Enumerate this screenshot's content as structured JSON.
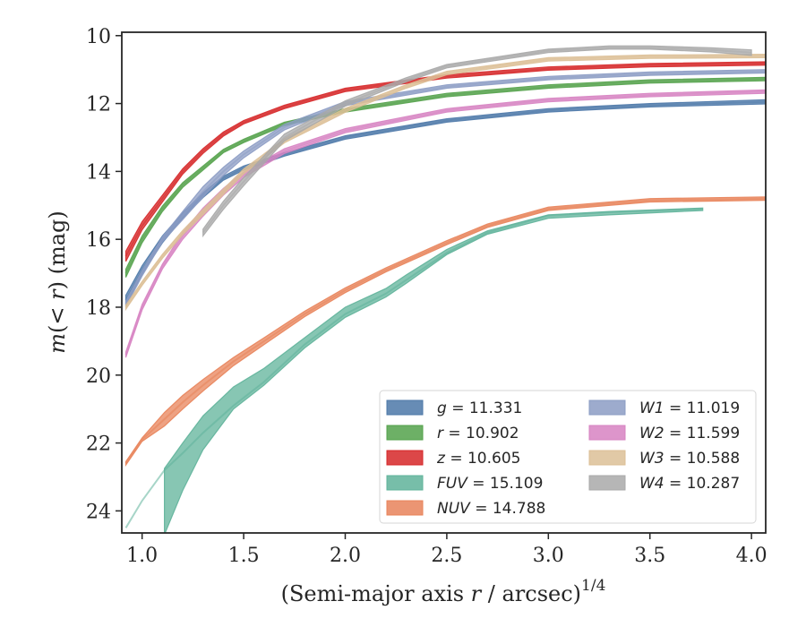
{
  "chart_data": {
    "type": "line",
    "xlabel": "(Semi-major axis r / arcsec)",
    "xlabel_parts": {
      "prefix": "(Semi-major axis ",
      "var": "r",
      "suffix": " / arcsec)",
      "sup": "1/4"
    },
    "ylabel": "m(< r) (mag)",
    "ylabel_parts": {
      "m": "m",
      "open": "(",
      "lt": "< ",
      "r": "r",
      "close": ") (mag)"
    },
    "xlim": [
      0.9,
      4.07
    ],
    "ylim": [
      24.65,
      9.9
    ],
    "y_inverted": true,
    "x_ticks": [
      "1.0",
      "1.5",
      "2.0",
      "2.5",
      "3.0",
      "3.5",
      "4.0"
    ],
    "y_ticks": [
      "10",
      "12",
      "14",
      "16",
      "18",
      "20",
      "22",
      "24"
    ],
    "x_tick_values": [
      1.0,
      1.5,
      2.0,
      2.5,
      3.0,
      3.5,
      4.0
    ],
    "y_tick_values": [
      10,
      12,
      14,
      16,
      18,
      20,
      22,
      24
    ],
    "grid": false,
    "legend_placement": "lower-right",
    "series": [
      {
        "label": "g",
        "value": "11.331",
        "color": "#4c78a8",
        "x": [
          0.92,
          1.0,
          1.1,
          1.2,
          1.3,
          1.4,
          1.5,
          1.7,
          2.0,
          2.5,
          3.0,
          3.5,
          4.07
        ],
        "y": [
          17.8,
          16.9,
          16.0,
          15.3,
          14.7,
          14.2,
          13.9,
          13.5,
          13.0,
          12.5,
          12.2,
          12.05,
          11.95
        ],
        "band": [
          0.15,
          0.12,
          0.1,
          0.08,
          0.07,
          0.06,
          0.06,
          0.05,
          0.05,
          0.05,
          0.05,
          0.05,
          0.06
        ]
      },
      {
        "label": "r",
        "value": "10.902",
        "color": "#54a24b",
        "x": [
          0.92,
          1.0,
          1.1,
          1.2,
          1.3,
          1.4,
          1.5,
          1.7,
          2.0,
          2.5,
          3.0,
          3.5,
          4.07
        ],
        "y": [
          17.0,
          16.0,
          15.1,
          14.4,
          13.9,
          13.4,
          13.1,
          12.6,
          12.2,
          11.75,
          11.5,
          11.35,
          11.28
        ],
        "band": [
          0.12,
          0.1,
          0.08,
          0.07,
          0.06,
          0.05,
          0.05,
          0.05,
          0.05,
          0.05,
          0.05,
          0.05,
          0.05
        ]
      },
      {
        "label": "z",
        "value": "10.605",
        "color": "#d62728",
        "x": [
          0.92,
          1.0,
          1.1,
          1.2,
          1.3,
          1.4,
          1.5,
          1.7,
          2.0,
          2.5,
          3.0,
          3.5,
          4.07
        ],
        "y": [
          16.5,
          15.6,
          14.8,
          14.0,
          13.4,
          12.9,
          12.55,
          12.1,
          11.6,
          11.2,
          10.97,
          10.87,
          10.82
        ],
        "band": [
          0.15,
          0.12,
          0.1,
          0.08,
          0.07,
          0.06,
          0.05,
          0.05,
          0.05,
          0.05,
          0.05,
          0.05,
          0.05
        ]
      },
      {
        "label": "FUV",
        "value": "15.109",
        "color": "#5fb39a",
        "x": [
          0.92,
          1.0,
          1.11,
          1.2,
          1.3,
          1.45,
          1.6,
          1.8,
          2.0,
          2.2,
          2.3,
          2.5,
          2.7,
          3.0,
          3.3,
          3.76
        ],
        "y": [
          24.5,
          23.7,
          22.8,
          22.3,
          21.7,
          20.9,
          20.2,
          19.1,
          18.2,
          17.6,
          17.2,
          16.4,
          15.8,
          15.3,
          15.2,
          15.1
        ],
        "band": [
          0.05,
          0.05,
          0.0,
          0.0,
          0.0,
          0.0,
          0.0,
          0.0,
          0.0,
          0.0,
          0.0,
          0.0,
          0.0,
          0.0,
          0.0,
          0.0
        ],
        "band_lo": [
          null,
          null,
          24.7,
          23.4,
          22.2,
          21.0,
          20.3,
          19.2,
          18.3,
          17.7,
          17.3,
          16.45,
          15.85,
          15.38,
          15.28,
          15.15
        ],
        "band_hi": [
          null,
          null,
          22.75,
          22.0,
          21.2,
          20.35,
          19.8,
          18.9,
          18.0,
          17.45,
          17.05,
          16.3,
          15.75,
          15.28,
          15.18,
          15.08
        ]
      },
      {
        "label": "NUV",
        "value": "14.788",
        "color": "#e8835a",
        "x": [
          0.92,
          1.0,
          1.11,
          1.2,
          1.3,
          1.45,
          1.6,
          1.8,
          2.0,
          2.2,
          2.5,
          2.7,
          3.0,
          3.5,
          4.07
        ],
        "y": [
          22.6,
          21.9,
          21.3,
          20.8,
          20.3,
          19.6,
          19.0,
          18.2,
          17.5,
          16.9,
          16.1,
          15.6,
          15.1,
          14.85,
          14.8
        ],
        "band": [
          0.05,
          0.05,
          0.2,
          0.2,
          0.17,
          0.12,
          0.1,
          0.08,
          0.07,
          0.06,
          0.06,
          0.05,
          0.05,
          0.05,
          0.05
        ]
      },
      {
        "label": "W1",
        "value": "11.019",
        "color": "#8c9cc4",
        "x": [
          0.92,
          1.0,
          1.1,
          1.2,
          1.3,
          1.4,
          1.5,
          1.7,
          2.0,
          2.5,
          3.0,
          3.5,
          4.07
        ],
        "y": [
          17.9,
          17.0,
          16.0,
          15.3,
          14.6,
          14.0,
          13.5,
          12.7,
          12.0,
          11.5,
          11.25,
          11.12,
          11.05
        ],
        "band": [
          0.08,
          0.08,
          0.07,
          0.12,
          0.15,
          0.12,
          0.1,
          0.08,
          0.06,
          0.05,
          0.05,
          0.05,
          0.05
        ]
      },
      {
        "label": "W2",
        "value": "11.599",
        "color": "#d783c2",
        "x": [
          0.92,
          1.0,
          1.1,
          1.2,
          1.3,
          1.4,
          1.5,
          1.7,
          2.0,
          2.5,
          3.0,
          3.5,
          4.07
        ],
        "y": [
          19.4,
          18.0,
          16.8,
          15.9,
          15.2,
          14.6,
          14.1,
          13.4,
          12.8,
          12.2,
          11.9,
          11.75,
          11.65
        ],
        "band": [
          0.08,
          0.08,
          0.07,
          0.1,
          0.12,
          0.1,
          0.08,
          0.07,
          0.06,
          0.05,
          0.05,
          0.05,
          0.05
        ]
      },
      {
        "label": "W3",
        "value": "10.588",
        "color": "#dcbf96",
        "x": [
          0.92,
          1.0,
          1.1,
          1.2,
          1.3,
          1.4,
          1.5,
          1.7,
          2.0,
          2.3,
          2.5,
          3.0,
          3.5,
          4.07
        ],
        "y": [
          18.0,
          17.3,
          16.5,
          15.8,
          15.2,
          14.6,
          14.0,
          13.1,
          12.2,
          11.5,
          11.1,
          10.7,
          10.62,
          10.6
        ],
        "band": [
          0.06,
          0.06,
          0.06,
          0.06,
          0.08,
          0.08,
          0.07,
          0.06,
          0.06,
          0.05,
          0.05,
          0.05,
          0.05,
          0.05
        ]
      },
      {
        "label": "W4",
        "value": "10.287",
        "color": "#a9a9a9",
        "x": [
          1.3,
          1.4,
          1.5,
          1.7,
          2.0,
          2.3,
          2.5,
          3.0,
          3.3,
          3.5,
          3.8,
          4.0
        ],
        "y": [
          15.8,
          15.0,
          14.3,
          13.0,
          12.0,
          11.3,
          10.9,
          10.45,
          10.35,
          10.35,
          10.42,
          10.5
        ],
        "band": [
          0.1,
          0.12,
          0.12,
          0.1,
          0.08,
          0.06,
          0.05,
          0.05,
          0.05,
          0.05,
          0.06,
          0.08
        ]
      }
    ],
    "legend": {
      "col1": [
        {
          "sym": "g",
          "rest": " = 11.331",
          "color": "#4c78a8"
        },
        {
          "sym": "r",
          "rest": " = 10.902",
          "color": "#54a24b"
        },
        {
          "sym": "z",
          "rest": " = 10.605",
          "color": "#d62728"
        },
        {
          "sym": "FUV",
          "rest": " = 15.109",
          "color": "#5fb39a"
        },
        {
          "sym": "NUV",
          "rest": " = 14.788",
          "color": "#e8835a"
        }
      ],
      "col2": [
        {
          "sym": "W1",
          "rest": " = 11.019",
          "color": "#8c9cc4"
        },
        {
          "sym": "W2",
          "rest": " = 11.599",
          "color": "#d783c2"
        },
        {
          "sym": "W3",
          "rest": " = 10.588",
          "color": "#dcbf96"
        },
        {
          "sym": "W4",
          "rest": " = 10.287",
          "color": "#a9a9a9"
        }
      ]
    }
  }
}
